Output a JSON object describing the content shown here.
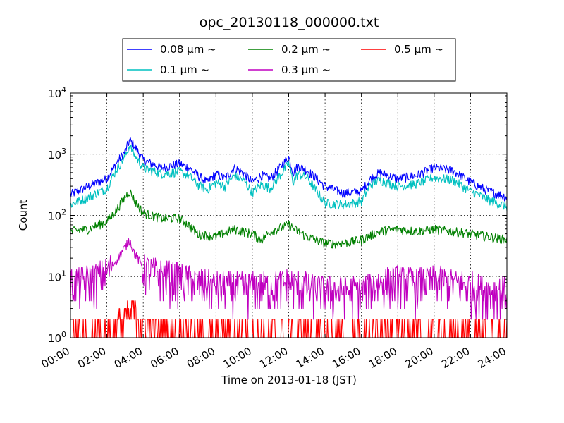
{
  "chart_data": {
    "type": "line",
    "title": "opc_20130118_000000.txt",
    "xlabel": "Time on 2013-01-18 (JST)",
    "ylabel": "Count",
    "xlim": [
      "00:00",
      "24:00"
    ],
    "ylim": [
      1,
      10000
    ],
    "yscale": "log",
    "grid": true,
    "legend_position": "top-center",
    "x_ticks": [
      "00:00",
      "02:00",
      "04:00",
      "06:00",
      "08:00",
      "10:00",
      "12:00",
      "14:00",
      "16:00",
      "18:00",
      "20:00",
      "22:00",
      "24:00"
    ],
    "y_ticks": [
      {
        "base": "10",
        "exp": "0"
      },
      {
        "base": "10",
        "exp": "1"
      },
      {
        "base": "10",
        "exp": "2"
      },
      {
        "base": "10",
        "exp": "3"
      },
      {
        "base": "10",
        "exp": "4"
      }
    ],
    "series": [
      {
        "name": "0.08 μm ~",
        "color": "#0000ff",
        "x": [
          "00:00",
          "01:00",
          "02:00",
          "02:30",
          "03:00",
          "03:15",
          "03:30",
          "04:00",
          "05:00",
          "06:00",
          "06:30",
          "07:00",
          "07:30",
          "08:00",
          "08:30",
          "09:00",
          "09:30",
          "10:00",
          "10:30",
          "11:00",
          "11:30",
          "12:00",
          "12:15",
          "12:30",
          "13:00",
          "14:00",
          "15:00",
          "16:00",
          "16:30",
          "17:00",
          "18:00",
          "19:00",
          "20:00",
          "21:00",
          "22:00",
          "23:00",
          "24:00"
        ],
        "values": [
          220,
          300,
          400,
          700,
          1100,
          1700,
          1400,
          800,
          600,
          700,
          600,
          450,
          350,
          480,
          400,
          600,
          500,
          350,
          450,
          400,
          600,
          900,
          500,
          650,
          550,
          300,
          230,
          250,
          400,
          500,
          400,
          450,
          600,
          550,
          350,
          250,
          200
        ]
      },
      {
        "name": "0.1 μm ~",
        "color": "#00c0c0",
        "x": [
          "00:00",
          "01:00",
          "02:00",
          "02:30",
          "03:00",
          "03:15",
          "03:30",
          "04:00",
          "05:00",
          "06:00",
          "06:30",
          "07:00",
          "07:30",
          "08:00",
          "08:30",
          "09:00",
          "09:30",
          "10:00",
          "10:30",
          "11:00",
          "11:30",
          "12:00",
          "12:15",
          "12:30",
          "13:00",
          "14:00",
          "15:00",
          "16:00",
          "16:30",
          "17:00",
          "18:00",
          "19:00",
          "20:00",
          "21:00",
          "22:00",
          "23:00",
          "24:00"
        ],
        "values": [
          150,
          200,
          280,
          550,
          900,
          1400,
          1000,
          600,
          480,
          520,
          450,
          320,
          260,
          350,
          300,
          450,
          380,
          240,
          320,
          280,
          450,
          700,
          350,
          480,
          420,
          160,
          150,
          170,
          320,
          380,
          300,
          330,
          420,
          380,
          250,
          180,
          140
        ]
      },
      {
        "name": "0.2 μm ~",
        "color": "#008000",
        "x": [
          "00:00",
          "01:00",
          "02:00",
          "02:30",
          "03:00",
          "03:15",
          "03:30",
          "04:00",
          "05:00",
          "06:00",
          "06:30",
          "07:00",
          "08:00",
          "09:00",
          "10:00",
          "10:30",
          "11:00",
          "12:00",
          "12:30",
          "13:00",
          "14:00",
          "15:00",
          "16:00",
          "17:00",
          "18:00",
          "19:00",
          "20:00",
          "21:00",
          "22:00",
          "23:00",
          "24:00"
        ],
        "values": [
          55,
          60,
          80,
          120,
          200,
          250,
          180,
          110,
          90,
          90,
          70,
          50,
          45,
          60,
          50,
          40,
          55,
          70,
          55,
          45,
          35,
          35,
          40,
          55,
          60,
          55,
          60,
          55,
          50,
          45,
          40
        ]
      },
      {
        "name": "0.3 μm ~",
        "color": "#c000c0",
        "x": [
          "00:00",
          "01:00",
          "02:00",
          "02:30",
          "03:00",
          "03:15",
          "03:30",
          "04:00",
          "05:00",
          "06:00",
          "07:00",
          "08:00",
          "09:00",
          "10:00",
          "11:00",
          "12:00",
          "13:00",
          "14:00",
          "15:00",
          "16:00",
          "17:00",
          "18:00",
          "19:00",
          "20:00",
          "21:00",
          "22:00",
          "23:00",
          "24:00"
        ],
        "values": [
          8,
          9,
          12,
          18,
          30,
          40,
          25,
          14,
          11,
          10,
          8,
          7,
          7,
          7,
          7,
          8,
          7,
          6,
          6,
          6,
          8,
          9,
          8,
          9,
          8,
          7,
          6,
          6
        ]
      },
      {
        "name": "0.5 μm ~",
        "color": "#ff0000",
        "x": [
          "00:00",
          "02:00",
          "03:00",
          "03:30",
          "04:00",
          "06:00",
          "08:00",
          "10:00",
          "12:00",
          "14:00",
          "16:00",
          "18:00",
          "20:00",
          "22:00",
          "24:00"
        ],
        "values": [
          1,
          1.2,
          2,
          3,
          1.5,
          1.2,
          1.1,
          1.1,
          1.2,
          1.1,
          1.1,
          1.2,
          1.2,
          1.1,
          1
        ]
      }
    ]
  }
}
